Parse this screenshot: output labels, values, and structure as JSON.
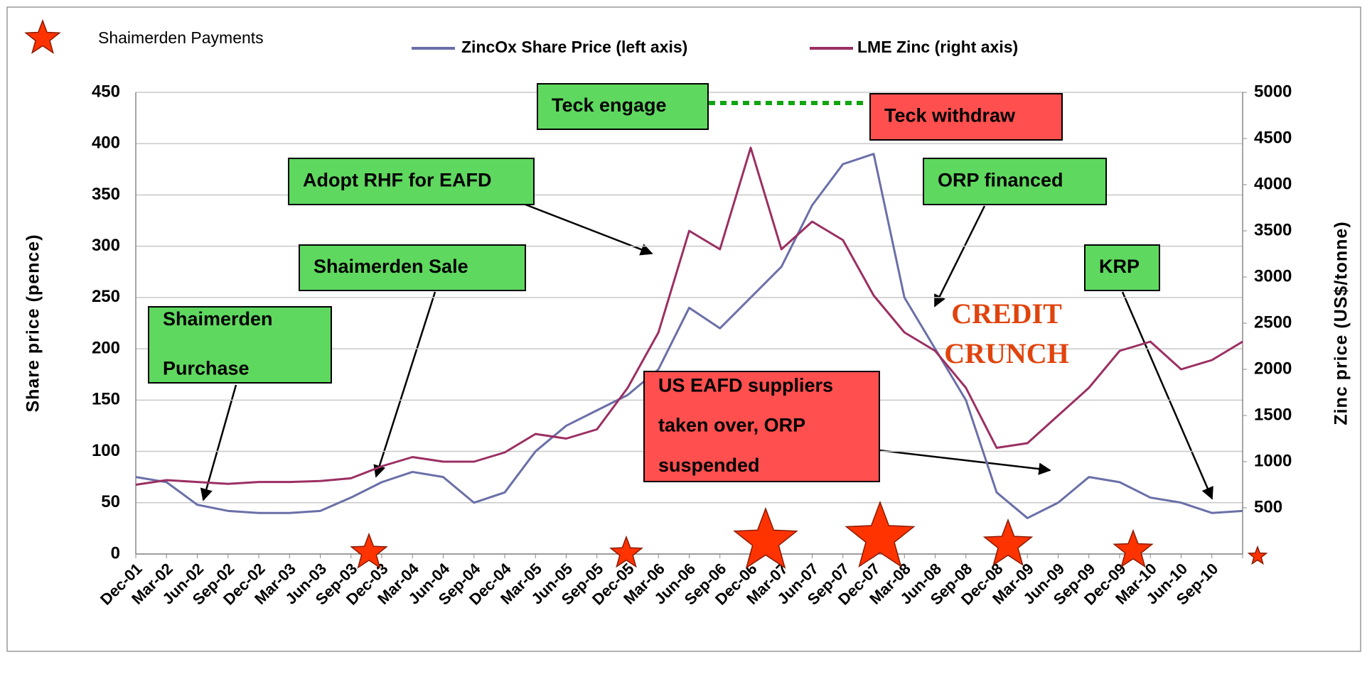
{
  "chart_data": {
    "type": "line",
    "payments_label": "Shaimerden Payments",
    "categories": [
      "Dec-01",
      "Mar-02",
      "Jun-02",
      "Sep-02",
      "Dec-02",
      "Mar-03",
      "Jun-03",
      "Sep-03",
      "Dec-03",
      "Mar-04",
      "Jun-04",
      "Sep-04",
      "Dec-04",
      "Mar-05",
      "Jun-05",
      "Sep-05",
      "Dec-05",
      "Mar-06",
      "Jun-06",
      "Sep-06",
      "Dec-06",
      "Mar-07",
      "Jun-07",
      "Sep-07",
      "Dec-07",
      "Mar-08",
      "Jun-08",
      "Sep-08",
      "Dec-08",
      "Mar-09",
      "Jun-09",
      "Sep-09",
      "Dec-09",
      "Mar-10",
      "Jun-10",
      "Sep-10",
      null
    ],
    "series": [
      {
        "name": "ZincOx Share Price (left axis)",
        "color": "#6a6fa8",
        "axis": "y",
        "values": [
          75,
          70,
          48,
          42,
          40,
          40,
          42,
          55,
          70,
          80,
          75,
          50,
          60,
          100,
          125,
          140,
          155,
          180,
          240,
          220,
          250,
          280,
          340,
          380,
          390,
          250,
          200,
          150,
          60,
          35,
          50,
          75,
          70,
          55,
          50,
          40,
          42
        ]
      },
      {
        "name": "LME Zinc (right axis)",
        "color": "#9b2f62",
        "axis": "y2",
        "values": [
          750,
          800,
          780,
          760,
          780,
          780,
          790,
          820,
          950,
          1050,
          1000,
          1000,
          1100,
          1300,
          1250,
          1350,
          1800,
          2400,
          3500,
          3300,
          4400,
          3300,
          3600,
          3400,
          2800,
          2400,
          2200,
          1800,
          1150,
          1200,
          1500,
          1800,
          2200,
          2300,
          2000,
          2100,
          2300
        ]
      }
    ],
    "ylabel": "Share price (pence)",
    "y2label": "Zinc price (US$/tonne)",
    "ylim": [
      0,
      450
    ],
    "yticks": [
      0,
      50,
      100,
      150,
      200,
      250,
      300,
      350,
      400,
      450
    ],
    "y2lim": [
      0,
      5000
    ],
    "y2ticks": [
      500,
      1000,
      1500,
      2000,
      2500,
      3000,
      3500,
      4000,
      4500,
      5000
    ],
    "grid": true,
    "annotations": [
      {
        "lines": [
          "Shaimerden",
          "Purchase"
        ]
      },
      {
        "lines": [
          "Shaimerden Sale"
        ]
      },
      {
        "lines": [
          "Adopt RHF for EAFD"
        ]
      },
      {
        "lines": [
          "Teck engage"
        ]
      },
      {
        "lines": [
          "Teck withdraw"
        ]
      },
      {
        "lines": [
          "ORP financed"
        ]
      },
      {
        "lines": [
          "KRP"
        ]
      },
      {
        "lines": [
          "US EAFD suppliers",
          "taken over, ORP",
          "suspended"
        ]
      },
      {
        "lines": [
          "CREDIT",
          "CRUNCH"
        ]
      }
    ]
  }
}
